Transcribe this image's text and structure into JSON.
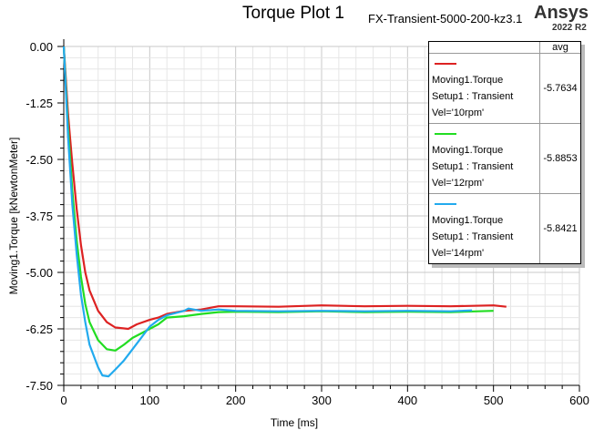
{
  "chart_data": {
    "type": "line",
    "title": "Torque Plot 1",
    "subtitle": "FX-Transient-5000-200-kz3.1",
    "brand": "Ansys",
    "version": "2022 R2",
    "xlabel": "Time [ms]",
    "ylabel": "Moving1.Torque [kNewtonMeter]",
    "xlim": [
      0,
      600
    ],
    "ylim": [
      -7.5,
      0
    ],
    "xticks": [
      "0",
      "100",
      "200",
      "300",
      "400",
      "500",
      "600"
    ],
    "yticks": [
      "0.00",
      "-1.25",
      "-2.50",
      "-3.75",
      "-5.00",
      "-6.25",
      "-7.50"
    ],
    "grid": true,
    "legend_header": "avg",
    "series": [
      {
        "name": "Moving1.Torque",
        "setup": "Setup1 : Transient",
        "vel": "Vel='10rpm'",
        "avg": "-5.7634",
        "color": "#dd2222",
        "x": [
          0,
          5,
          10,
          15,
          20,
          25,
          30,
          40,
          50,
          60,
          75,
          85,
          100,
          110,
          120,
          140,
          160,
          180,
          200,
          250,
          300,
          350,
          400,
          450,
          500,
          515
        ],
        "y": [
          0,
          -1.5,
          -2.6,
          -3.6,
          -4.4,
          -5.0,
          -5.4,
          -5.85,
          -6.1,
          -6.22,
          -6.25,
          -6.15,
          -6.05,
          -6.0,
          -5.92,
          -5.85,
          -5.82,
          -5.75,
          -5.75,
          -5.76,
          -5.73,
          -5.75,
          -5.74,
          -5.75,
          -5.73,
          -5.76
        ]
      },
      {
        "name": "Moving1.Torque",
        "setup": "Setup1 : Transient",
        "vel": "Vel='12rpm'",
        "avg": "-5.8853",
        "color": "#22dd22",
        "x": [
          0,
          5,
          10,
          15,
          20,
          25,
          30,
          40,
          50,
          60,
          70,
          80,
          90,
          100,
          110,
          120,
          140,
          160,
          180,
          200,
          250,
          300,
          350,
          400,
          450,
          500
        ],
        "y": [
          0,
          -1.8,
          -3.2,
          -4.3,
          -5.1,
          -5.7,
          -6.1,
          -6.5,
          -6.7,
          -6.73,
          -6.6,
          -6.45,
          -6.35,
          -6.25,
          -6.15,
          -6.0,
          -5.97,
          -5.92,
          -5.88,
          -5.87,
          -5.88,
          -5.86,
          -5.88,
          -5.87,
          -5.88,
          -5.85
        ]
      },
      {
        "name": "Moving1.Torque",
        "setup": "Setup1 : Transient",
        "vel": "Vel='14rpm'",
        "avg": "-5.8421",
        "color": "#22aaee",
        "x": [
          0,
          5,
          10,
          15,
          20,
          25,
          30,
          40,
          45,
          52,
          60,
          70,
          80,
          90,
          100,
          110,
          120,
          140,
          145,
          160,
          180,
          200,
          250,
          300,
          350,
          400,
          450,
          475
        ],
        "y": [
          0,
          -2,
          -3.5,
          -4.6,
          -5.5,
          -6.1,
          -6.6,
          -7.1,
          -7.28,
          -7.3,
          -7.15,
          -6.95,
          -6.7,
          -6.45,
          -6.2,
          -6.05,
          -5.95,
          -5.85,
          -5.8,
          -5.85,
          -5.82,
          -5.85,
          -5.86,
          -5.85,
          -5.86,
          -5.85,
          -5.86,
          -5.84
        ]
      }
    ]
  }
}
